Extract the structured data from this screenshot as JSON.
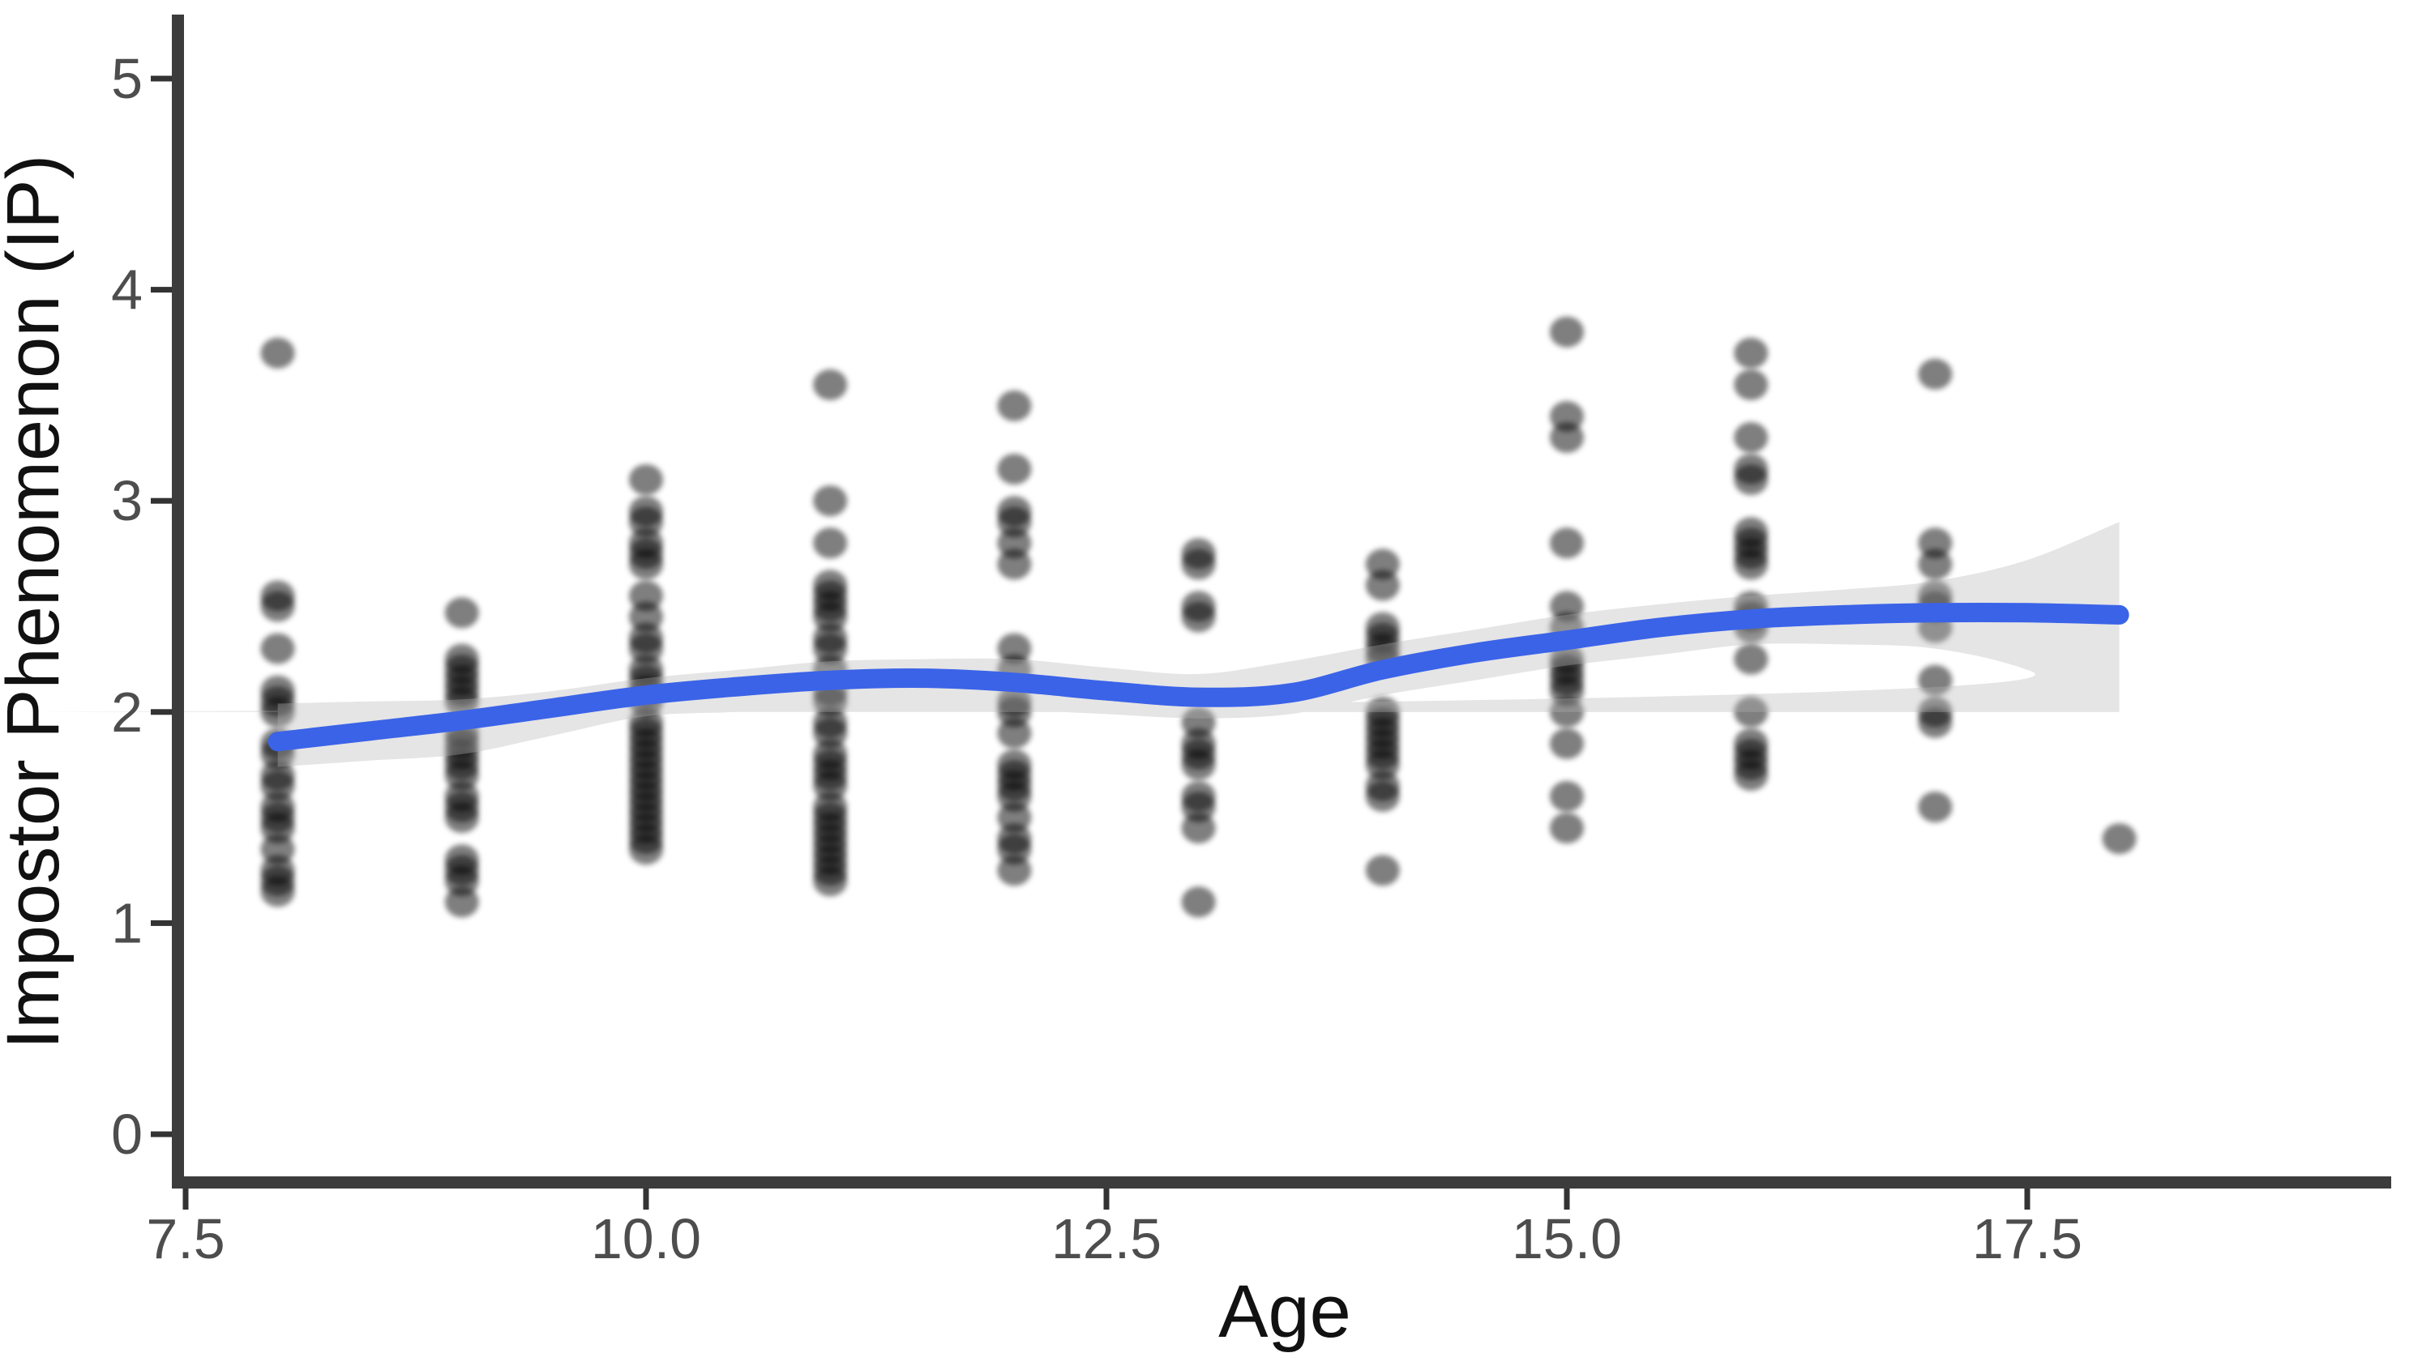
{
  "chart_data": {
    "type": "scatter",
    "title": "",
    "xlabel": "Age",
    "ylabel": "Impostor Phenomenon (IP)",
    "x_ticks": [
      7.5,
      10.0,
      12.5,
      15.0,
      17.5
    ],
    "x_tick_labels": [
      "7.5",
      "10.0",
      "12.5",
      "15.0",
      "17.5"
    ],
    "y_ticks": [
      0,
      1,
      2,
      3,
      4,
      5
    ],
    "y_tick_labels": [
      "0",
      "1",
      "2",
      "3",
      "4",
      "5"
    ],
    "xlim": [
      7.45,
      19.1
    ],
    "ylim": [
      -0.25,
      5.3
    ],
    "grid": false,
    "legend": null,
    "points": [
      {
        "x": 8,
        "y": [
          3.7,
          2.55,
          2.5,
          2.3,
          2.1,
          2.05,
          2.0,
          1.85,
          1.8,
          1.7,
          1.65,
          1.55,
          1.5,
          1.45,
          1.35,
          1.25,
          1.2,
          1.15
        ]
      },
      {
        "x": 9,
        "y": [
          2.47,
          2.25,
          2.2,
          2.15,
          2.1,
          2.05,
          1.9,
          1.85,
          1.8,
          1.75,
          1.7,
          1.6,
          1.55,
          1.5,
          1.3,
          1.25,
          1.2,
          1.1
        ]
      },
      {
        "x": 10,
        "y": [
          3.1,
          2.95,
          2.9,
          2.8,
          2.75,
          2.7,
          2.55,
          2.45,
          2.35,
          2.3,
          2.2,
          2.15,
          2.1,
          2.05,
          1.95,
          1.9,
          1.85,
          1.8,
          1.75,
          1.7,
          1.65,
          1.6,
          1.55,
          1.5,
          1.45,
          1.4,
          1.35
        ]
      },
      {
        "x": 11,
        "y": [
          3.55,
          3.0,
          2.8,
          2.6,
          2.55,
          2.5,
          2.45,
          2.35,
          2.3,
          2.2,
          2.1,
          2.05,
          1.95,
          1.9,
          1.8,
          1.75,
          1.7,
          1.65,
          1.55,
          1.5,
          1.45,
          1.4,
          1.35,
          1.3,
          1.25,
          1.2
        ]
      },
      {
        "x": 12,
        "y": [
          3.45,
          3.15,
          2.95,
          2.9,
          2.8,
          2.7,
          2.3,
          2.2,
          2.05,
          2.0,
          1.9,
          1.75,
          1.7,
          1.65,
          1.6,
          1.5,
          1.4,
          1.35,
          1.25
        ]
      },
      {
        "x": 13,
        "y": [
          2.75,
          2.7,
          2.5,
          2.45,
          1.95,
          1.85,
          1.8,
          1.75,
          1.6,
          1.55,
          1.45,
          1.1
        ]
      },
      {
        "x": 14,
        "y": [
          2.7,
          2.6,
          2.4,
          2.35,
          2.3,
          2.25,
          2.0,
          1.95,
          1.9,
          1.85,
          1.8,
          1.75,
          1.65,
          1.6,
          1.25
        ]
      },
      {
        "x": 15,
        "y": [
          3.8,
          3.4,
          3.3,
          2.8,
          2.5,
          2.4,
          2.25,
          2.2,
          2.15,
          2.1,
          2.0,
          1.85,
          1.6,
          1.45
        ]
      },
      {
        "x": 16,
        "y": [
          3.7,
          3.55,
          3.3,
          3.15,
          3.1,
          2.85,
          2.8,
          2.75,
          2.7,
          2.5,
          2.45,
          2.4,
          2.25,
          2.0,
          1.85,
          1.8,
          1.75,
          1.7
        ]
      },
      {
        "x": 17,
        "y": [
          3.6,
          2.8,
          2.7,
          2.55,
          2.5,
          2.4,
          2.15,
          2.0,
          1.95,
          1.55
        ]
      },
      {
        "x": 18,
        "y": [
          1.4
        ]
      }
    ],
    "smooth_line": {
      "name": "loess-fit",
      "x": [
        8,
        8.5,
        9,
        9.5,
        10,
        10.5,
        11,
        11.5,
        12,
        12.5,
        13,
        13.5,
        14,
        14.5,
        15,
        15.5,
        16,
        16.5,
        17,
        17.5,
        18
      ],
      "y": [
        1.86,
        1.91,
        1.96,
        2.02,
        2.08,
        2.12,
        2.15,
        2.16,
        2.14,
        2.1,
        2.07,
        2.09,
        2.2,
        2.28,
        2.34,
        2.4,
        2.44,
        2.46,
        2.47,
        2.47,
        2.46
      ]
    },
    "confidence_band": {
      "x": [
        8,
        8.5,
        9,
        9.5,
        10,
        10.5,
        11,
        11.5,
        12,
        12.5,
        13,
        13.5,
        14,
        14.5,
        15,
        15.5,
        16,
        16.5,
        17,
        17.5,
        18
      ],
      "upper": [
        2.04,
        2.05,
        2.06,
        2.1,
        2.16,
        2.2,
        2.24,
        2.25,
        2.25,
        2.21,
        2.18,
        2.24,
        2.32,
        2.39,
        2.46,
        2.51,
        2.55,
        2.58,
        2.62,
        2.72,
        2.9
      ],
      "lower": [
        1.74,
        1.77,
        1.8,
        1.89,
        1.98,
        2.0,
        2.02,
        2.02,
        2.01,
        1.99,
        1.97,
        1.99,
        2.08,
        2.15,
        2.22,
        2.27,
        2.32,
        2.32,
        2.3,
        2.2,
        2.0
      ]
    },
    "colors": {
      "point": "#000000",
      "point_opacity": 0.5,
      "line": "#3b63e8",
      "band": "#b4b4b4",
      "band_opacity": 0.35,
      "axis_line": "#3c3c3c",
      "tick_mark": "#333333",
      "tick_label": "#4d4d4d",
      "axis_title": "#111111",
      "background": "#ffffff"
    }
  }
}
